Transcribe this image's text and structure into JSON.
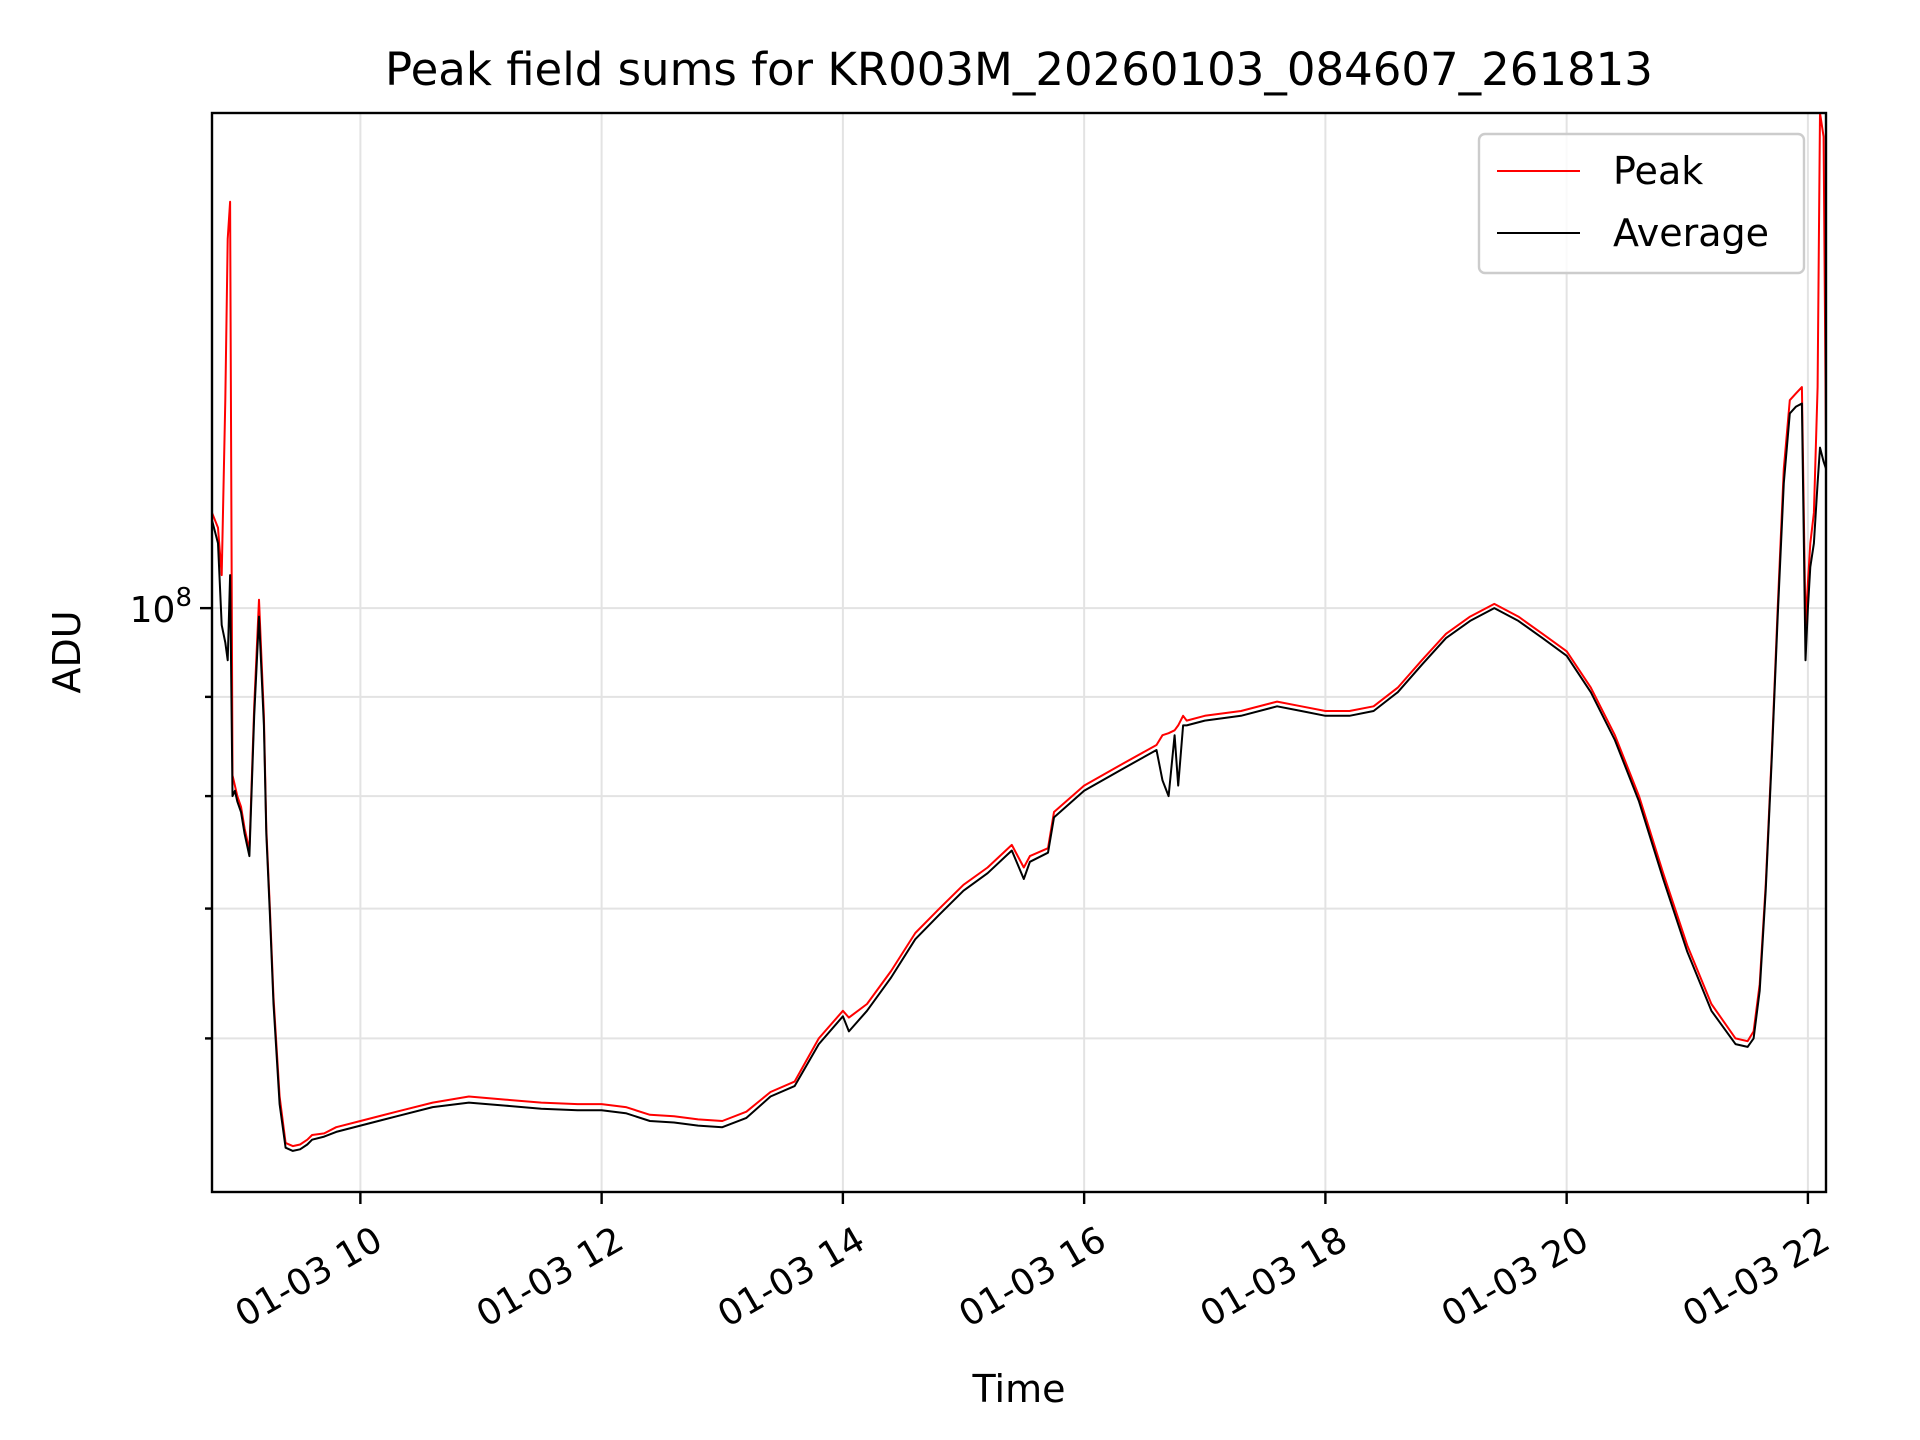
{
  "chart_data": {
    "type": "line",
    "title": "Peak field sums for KR003M_20260103_084607_261813",
    "xlabel": "Time",
    "ylabel": "ADU",
    "x_unit": "hours on 01-03",
    "xlim": [
      8.77,
      22.15
    ],
    "ylim": [
      50000000,
      180000000
    ],
    "yscale": "log",
    "grid": true,
    "legend_position": "top-right",
    "x_tick_labels": [
      "01-03 10",
      "01-03 12",
      "01-03 14",
      "01-03 16",
      "01-03 18",
      "01-03 20",
      "01-03 22"
    ],
    "x_ticks": [
      10,
      12,
      14,
      16,
      18,
      20,
      22
    ],
    "y_major_ticks": [
      100000000
    ],
    "y_major_tick_label": {
      "base": "10",
      "exp": "8"
    },
    "y_minor_ticks": [
      60000000,
      70000000,
      80000000,
      90000000
    ],
    "series": [
      {
        "name": "Peak",
        "color": "#ff0000",
        "x": [
          8.77,
          8.82,
          8.85,
          8.88,
          8.9,
          8.92,
          8.94,
          8.96,
          8.98,
          9.01,
          9.04,
          9.08,
          9.12,
          9.16,
          9.2,
          9.22,
          9.25,
          9.28,
          9.33,
          9.38,
          9.44,
          9.5,
          9.56,
          9.6,
          9.7,
          9.8,
          10.0,
          10.3,
          10.6,
          10.9,
          11.2,
          11.5,
          11.8,
          12.0,
          12.2,
          12.4,
          12.6,
          12.8,
          13.0,
          13.2,
          13.4,
          13.6,
          13.8,
          14.0,
          14.05,
          14.2,
          14.4,
          14.6,
          14.8,
          15.0,
          15.2,
          15.4,
          15.5,
          15.55,
          15.7,
          15.75,
          16.0,
          16.3,
          16.6,
          16.65,
          16.7,
          16.75,
          16.78,
          16.82,
          16.85,
          17.0,
          17.3,
          17.6,
          17.8,
          18.0,
          18.2,
          18.4,
          18.6,
          18.8,
          19.0,
          19.2,
          19.4,
          19.6,
          19.8,
          20.0,
          20.2,
          20.4,
          20.6,
          20.8,
          21.0,
          21.2,
          21.4,
          21.5,
          21.55,
          21.6,
          21.65,
          21.7,
          21.75,
          21.8,
          21.85,
          21.9,
          21.95,
          21.98,
          22.0,
          22.02,
          22.05,
          22.08,
          22.1,
          22.13,
          22.15
        ],
        "y": [
          112000000,
          110000000,
          104000000,
          128000000,
          155000000,
          162000000,
          82000000,
          81000000,
          80000000,
          79000000,
          77000000,
          75000000,
          89000000,
          101000000,
          88000000,
          77000000,
          70000000,
          63000000,
          56000000,
          53000000,
          52800000,
          52900000,
          53200000,
          53500000,
          53600000,
          54000000,
          54400000,
          55000000,
          55600000,
          56000000,
          55800000,
          55600000,
          55500000,
          55500000,
          55300000,
          54800000,
          54700000,
          54500000,
          54400000,
          55000000,
          56300000,
          57000000,
          60000000,
          62000000,
          61500000,
          62500000,
          65000000,
          68000000,
          70000000,
          72000000,
          73500000,
          75500000,
          73500000,
          74500000,
          75200000,
          78500000,
          81000000,
          83000000,
          85000000,
          86000000,
          86200000,
          86500000,
          87000000,
          88000000,
          87500000,
          88000000,
          88500000,
          89500000,
          89000000,
          88500000,
          88500000,
          89000000,
          91000000,
          94000000,
          97000000,
          99000000,
          100500000,
          99000000,
          97000000,
          95000000,
          91000000,
          86000000,
          80000000,
          73000000,
          67000000,
          62500000,
          60000000,
          59800000,
          60500000,
          64000000,
          72000000,
          84000000,
          100000000,
          118000000,
          128000000,
          129000000,
          130000000,
          98000000,
          103000000,
          108000000,
          112000000,
          130000000,
          180000000,
          175000000,
          121000000
        ]
      },
      {
        "name": "Average",
        "color": "#000000",
        "x": [
          8.77,
          8.82,
          8.85,
          8.88,
          8.9,
          8.92,
          8.94,
          8.96,
          8.98,
          9.01,
          9.04,
          9.08,
          9.12,
          9.16,
          9.2,
          9.22,
          9.25,
          9.28,
          9.33,
          9.38,
          9.44,
          9.5,
          9.56,
          9.6,
          9.7,
          9.8,
          10.0,
          10.3,
          10.6,
          10.9,
          11.2,
          11.5,
          11.8,
          12.0,
          12.2,
          12.4,
          12.6,
          12.8,
          13.0,
          13.2,
          13.4,
          13.6,
          13.8,
          14.0,
          14.05,
          14.2,
          14.4,
          14.6,
          14.8,
          15.0,
          15.2,
          15.4,
          15.5,
          15.55,
          15.7,
          15.75,
          16.0,
          16.3,
          16.6,
          16.65,
          16.7,
          16.75,
          16.78,
          16.82,
          16.85,
          17.0,
          17.3,
          17.6,
          17.8,
          18.0,
          18.2,
          18.4,
          18.6,
          18.8,
          19.0,
          19.2,
          19.4,
          19.6,
          19.8,
          20.0,
          20.2,
          20.4,
          20.6,
          20.8,
          21.0,
          21.2,
          21.4,
          21.5,
          21.55,
          21.6,
          21.65,
          21.7,
          21.75,
          21.8,
          21.85,
          21.9,
          21.95,
          21.98,
          22.0,
          22.02,
          22.05,
          22.08,
          22.1,
          22.13,
          22.15
        ],
        "y": [
          111000000,
          108000000,
          98000000,
          96000000,
          94000000,
          104000000,
          80000000,
          80500000,
          79500000,
          78500000,
          76500000,
          74500000,
          88000000,
          99000000,
          87000000,
          76500000,
          69500000,
          62500000,
          55500000,
          52700000,
          52500000,
          52600000,
          52900000,
          53200000,
          53400000,
          53700000,
          54100000,
          54700000,
          55300000,
          55600000,
          55400000,
          55200000,
          55100000,
          55100000,
          54900000,
          54400000,
          54300000,
          54100000,
          54000000,
          54600000,
          56000000,
          56700000,
          59600000,
          61600000,
          60500000,
          62000000,
          64500000,
          67500000,
          69500000,
          71500000,
          73000000,
          75000000,
          72500000,
          74000000,
          74800000,
          78000000,
          80500000,
          82500000,
          84500000,
          81500000,
          80000000,
          86000000,
          81000000,
          87000000,
          87000000,
          87500000,
          88000000,
          89000000,
          88500000,
          88000000,
          88000000,
          88500000,
          90500000,
          93500000,
          96500000,
          98500000,
          100000000,
          98500000,
          96500000,
          94500000,
          90500000,
          85500000,
          79500000,
          72500000,
          66500000,
          62000000,
          59600000,
          59400000,
          60000000,
          63500000,
          71500000,
          83500000,
          99000000,
          116000000,
          126000000,
          127000000,
          127500000,
          94000000,
          100000000,
          105000000,
          108000000,
          116000000,
          121000000,
          119000000,
          118000000
        ]
      }
    ]
  }
}
